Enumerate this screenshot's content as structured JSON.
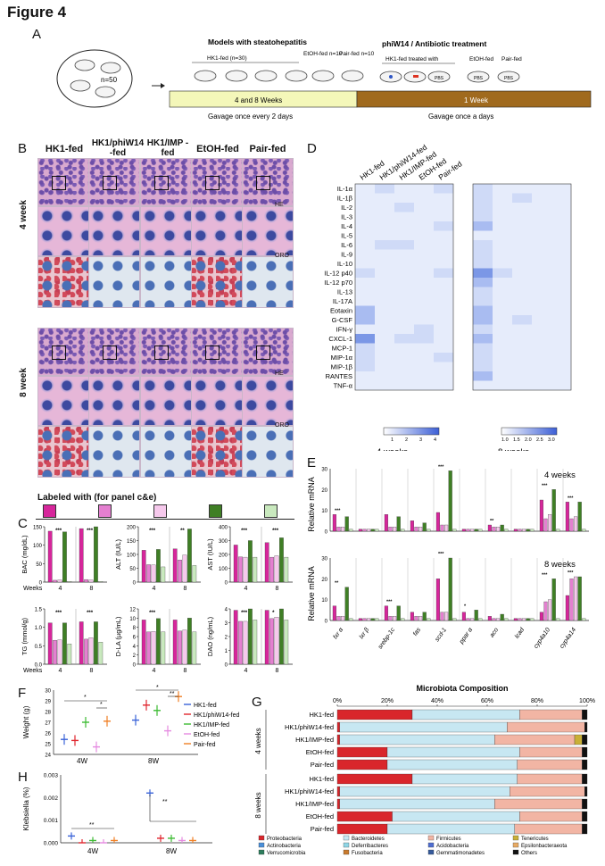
{
  "figure_title": "Figure 4",
  "panel_labels": {
    "A": "A",
    "B": "B",
    "C": "C",
    "D": "D",
    "E": "E",
    "F": "F",
    "G": "G",
    "H": "H"
  },
  "panel_a": {
    "n_label": "n=50",
    "models_title": "Models with steatohepatitis",
    "hk1_group": "HK1-fed (n=30)",
    "etoh_group": "EtOH-fed n=10",
    "pair_group": "Pair-fed n=10",
    "treatment_title": "phiW14 / Antibiotic treatment",
    "treated_label": "HK1-fed treated with",
    "etoh_fed": "EtOH-fed",
    "pair_fed": "Pair-fed",
    "pbs": "PBS",
    "weeks_bar": "4 and 8 Weeks",
    "one_week_bar": "1 Week",
    "gavage_left": "Gavage once every 2 days",
    "gavage_right": "Gavage once a days"
  },
  "panel_b": {
    "columns": [
      "HK1-fed",
      "HK1/phiW14 -fed",
      "HK1/IMP -fed",
      "EtOH-fed",
      "Pair-fed"
    ],
    "rows": [
      "4 week",
      "8 week"
    ],
    "stain_he": "HE",
    "stain_oro": "ORO",
    "legend_title": "Labeled with (for panel c&e)"
  },
  "legend_colors": [
    "#d6269b",
    "#e47fd0",
    "#f6c9ec",
    "#3f7f25",
    "#c9e9be"
  ],
  "panel_c": {
    "weeks_label": "Weeks",
    "charts": [
      {
        "ylabel": "BAC (mg/dL)",
        "ylim": [
          0,
          150
        ],
        "ticks": [
          "0",
          "50",
          "100",
          "150"
        ],
        "stars4": "***",
        "stars8": "***",
        "values4": [
          138,
          5,
          6,
          136,
          1
        ],
        "values8": [
          145,
          7,
          6,
          150,
          1
        ]
      },
      {
        "ylabel": "ALT (IU/L)",
        "ylim": [
          0,
          200
        ],
        "ticks": [
          "0",
          "50",
          "100",
          "150",
          "200"
        ],
        "stars4": "***",
        "stars8": "**",
        "values4": [
          115,
          63,
          62,
          118,
          55
        ],
        "values8": [
          120,
          80,
          98,
          192,
          60
        ]
      },
      {
        "ylabel": "AST (IU/L)",
        "ylim": [
          0,
          400
        ],
        "ticks": [
          "0",
          "100",
          "200",
          "300",
          "400"
        ],
        "stars4": "***",
        "stars8": "***",
        "values4": [
          268,
          182,
          180,
          300,
          180
        ],
        "values8": [
          285,
          180,
          190,
          320,
          180
        ]
      },
      {
        "ylabel": "TG (mmol/g)",
        "ylim": [
          0,
          1.5
        ],
        "ticks": [
          "0.0",
          "0.5",
          "1.0",
          "1.5"
        ],
        "stars4": "***",
        "stars8": "***",
        "values4": [
          1.12,
          0.65,
          0.66,
          1.12,
          0.55
        ],
        "values8": [
          1.15,
          0.68,
          0.72,
          1.15,
          0.6
        ]
      },
      {
        "ylabel": "D-LA (µg/mL)",
        "ylim": [
          0,
          12
        ],
        "ticks": [
          "0",
          "2",
          "4",
          "6",
          "8",
          "10",
          "12"
        ],
        "stars4": "***",
        "stars8": "",
        "values4": [
          9.6,
          7.0,
          7.1,
          9.9,
          7.0
        ],
        "values8": [
          9.6,
          7.2,
          7.4,
          10.0,
          7.0
        ]
      },
      {
        "ylabel": "DAO (ng/mL)",
        "ylim": [
          0,
          4
        ],
        "ticks": [
          "0",
          "1",
          "2",
          "3",
          "4"
        ],
        "stars4": "***",
        "stars8": "*",
        "values4": [
          3.9,
          3.1,
          3.1,
          4.0,
          3.2
        ],
        "values8": [
          3.9,
          3.3,
          3.4,
          4.0,
          3.2
        ]
      }
    ]
  },
  "panel_d": {
    "columns": [
      "HK1-fed",
      "HK1/phiW14-fed",
      "HK1/IMP-fed",
      "EtOH-fed",
      "Pair-fed"
    ],
    "cytokines": [
      "IL-1α",
      "IL-1β",
      "IL-2",
      "IL-3",
      "IL-4",
      "IL-5",
      "IL-6",
      "IL-9",
      "IL-10",
      "IL-12 p40",
      "IL-12 p70",
      "IL-13",
      "IL-17A",
      "Eotaxin",
      "G-CSF",
      "IFN-γ",
      "CXCL-1",
      "MCP-1",
      "MIP-1α",
      "MIP-1β",
      "RANTES",
      "TNF-α"
    ],
    "scale4_ticks": [
      "1",
      "2",
      "3",
      "4"
    ],
    "scale8_ticks": [
      "1.0",
      "1.5",
      "2.0",
      "2.5",
      "3.0"
    ],
    "label4": "4 weeks",
    "label8": "8 weeks"
  },
  "panel_e": {
    "ylabel": "Relative mRNA",
    "genes": [
      "fxr α",
      "lxr β",
      "srebp-1c",
      "fas",
      "scd-1",
      "ppar α",
      "aco",
      "lcad",
      "cyp4a10",
      "cyp4a14"
    ],
    "label4": "4 weeks",
    "label8": "8 weeks",
    "ticks4": [
      "0",
      "10",
      "20",
      "30"
    ],
    "ticks8": [
      "0",
      "10",
      "20",
      "30"
    ],
    "values4": [
      [
        8,
        2,
        2,
        7,
        1
      ],
      [
        1,
        1,
        1,
        1,
        1
      ],
      [
        8,
        2,
        2,
        7,
        1
      ],
      [
        5,
        2,
        2,
        4,
        1
      ],
      [
        9,
        3,
        3,
        29,
        1
      ],
      [
        1,
        1,
        1,
        1,
        1
      ],
      [
        3,
        2,
        2,
        3,
        1
      ],
      [
        1,
        1,
        1,
        1,
        1
      ],
      [
        15,
        6,
        8,
        20,
        1
      ],
      [
        14,
        6,
        7,
        14,
        1
      ]
    ],
    "values8": [
      [
        7,
        2,
        2,
        16,
        1
      ],
      [
        1,
        1,
        1,
        1,
        1
      ],
      [
        7,
        2,
        2,
        7,
        1
      ],
      [
        4,
        2,
        2,
        4,
        1
      ],
      [
        20,
        4,
        4,
        30,
        1
      ],
      [
        4,
        1,
        1,
        5,
        1
      ],
      [
        2,
        1,
        1,
        3,
        1
      ],
      [
        1,
        1,
        1,
        1,
        1
      ],
      [
        4,
        9,
        10,
        20,
        1
      ],
      [
        12,
        20,
        21,
        21,
        1
      ]
    ],
    "stars4": [
      "***",
      "",
      "",
      "",
      "***",
      "",
      "**",
      "",
      "***",
      "***"
    ],
    "stars8": [
      "**",
      "",
      "***",
      "",
      "***",
      "*",
      "",
      "",
      "***",
      "***"
    ]
  },
  "panel_f": {
    "ylabel": "Weight (g)",
    "ticks": [
      "24",
      "25",
      "26",
      "27",
      "28",
      "29",
      "30"
    ],
    "groups": [
      "4W",
      "8W"
    ],
    "series": [
      "HK1-fed",
      "HK1/phiW14-fed",
      "HK1/IMP-fed",
      "EtOH-fed",
      "Pair-fed"
    ],
    "colors": [
      "#3a63d8",
      "#e0262e",
      "#3dbb33",
      "#e58ae0",
      "#f07f24"
    ],
    "means4": [
      25.4,
      25.3,
      27.0,
      24.7,
      27.1
    ],
    "means8": [
      27.2,
      28.6,
      28.1,
      26.2,
      29.4
    ],
    "stars": [
      "*",
      "*",
      "*",
      "**"
    ]
  },
  "panel_h": {
    "ylabel": "Klebsiella (%)",
    "ticks": [
      "0.000",
      "0.001",
      "0.002",
      "0.003"
    ],
    "groups": [
      "4W",
      "8W"
    ],
    "means4": [
      0.0003,
      0.0,
      0.0001,
      0.0,
      0.0001
    ],
    "means8": [
      0.0022,
      0.0002,
      0.0002,
      0.0001,
      0.0001
    ],
    "stars": [
      "**",
      "**"
    ]
  },
  "panel_g": {
    "title": "Microbiota Composition",
    "axis_ticks": [
      "0%",
      "20%",
      "40%",
      "60%",
      "80%",
      "100%"
    ],
    "week4": "4 weeks",
    "week8": "8 weeks",
    "rows4": [
      "HK1-fed",
      "HK1/phiW14-fed",
      "HK1/IMP-fed",
      "EtOH-fed",
      "Pair-fed"
    ],
    "rows8": [
      "HK1-fed",
      "HK1/phiW14-fed",
      "HK1/IMP-fed",
      "EtOH-fed",
      "Pair-fed"
    ],
    "taxa": [
      "Proteobacteria",
      "Bacteroidetes",
      "Firmicutes",
      "Tenericutes",
      "Actinobacteria",
      "Deferribacteres",
      "Acidobacteria",
      "Epsilonbacteraeota",
      "Verrucomicrobia",
      "Fusobacteria",
      "Gemmatimonadetes",
      "Others"
    ],
    "taxa_colors": [
      "#d9262b",
      "#c7e7f2",
      "#f2b5a4",
      "#c9b037",
      "#4a8fd9",
      "#8fd6e6",
      "#4f6ed1",
      "#e7aa63",
      "#2e7d5d",
      "#c97a2d",
      "#355a9c",
      "#111111"
    ],
    "comp4": [
      [
        30,
        43,
        25,
        0,
        0,
        0,
        0,
        0,
        0,
        0,
        0,
        2
      ],
      [
        1,
        67,
        31,
        0,
        0,
        0,
        0,
        0,
        0,
        0,
        0,
        1
      ],
      [
        1,
        62,
        32,
        3,
        0,
        0,
        0,
        0,
        0,
        0,
        0,
        2
      ],
      [
        20,
        53,
        25,
        0,
        0,
        0,
        0,
        0,
        0,
        0,
        0,
        2
      ],
      [
        20,
        52,
        26,
        0,
        0,
        0,
        0,
        0,
        0,
        0,
        0,
        2
      ]
    ],
    "comp8": [
      [
        30,
        42,
        26,
        0,
        0,
        0,
        0,
        0,
        0,
        0,
        0,
        2
      ],
      [
        1,
        68,
        30,
        0,
        0,
        0,
        0,
        0,
        0,
        0,
        0,
        1
      ],
      [
        1,
        62,
        35,
        0,
        0,
        0,
        0,
        0,
        0,
        0,
        0,
        2
      ],
      [
        22,
        51,
        25,
        0,
        0,
        0,
        0,
        0,
        0,
        0,
        0,
        2
      ],
      [
        20,
        51,
        27,
        0,
        0,
        0,
        0,
        0,
        0,
        0,
        0,
        2
      ]
    ]
  }
}
